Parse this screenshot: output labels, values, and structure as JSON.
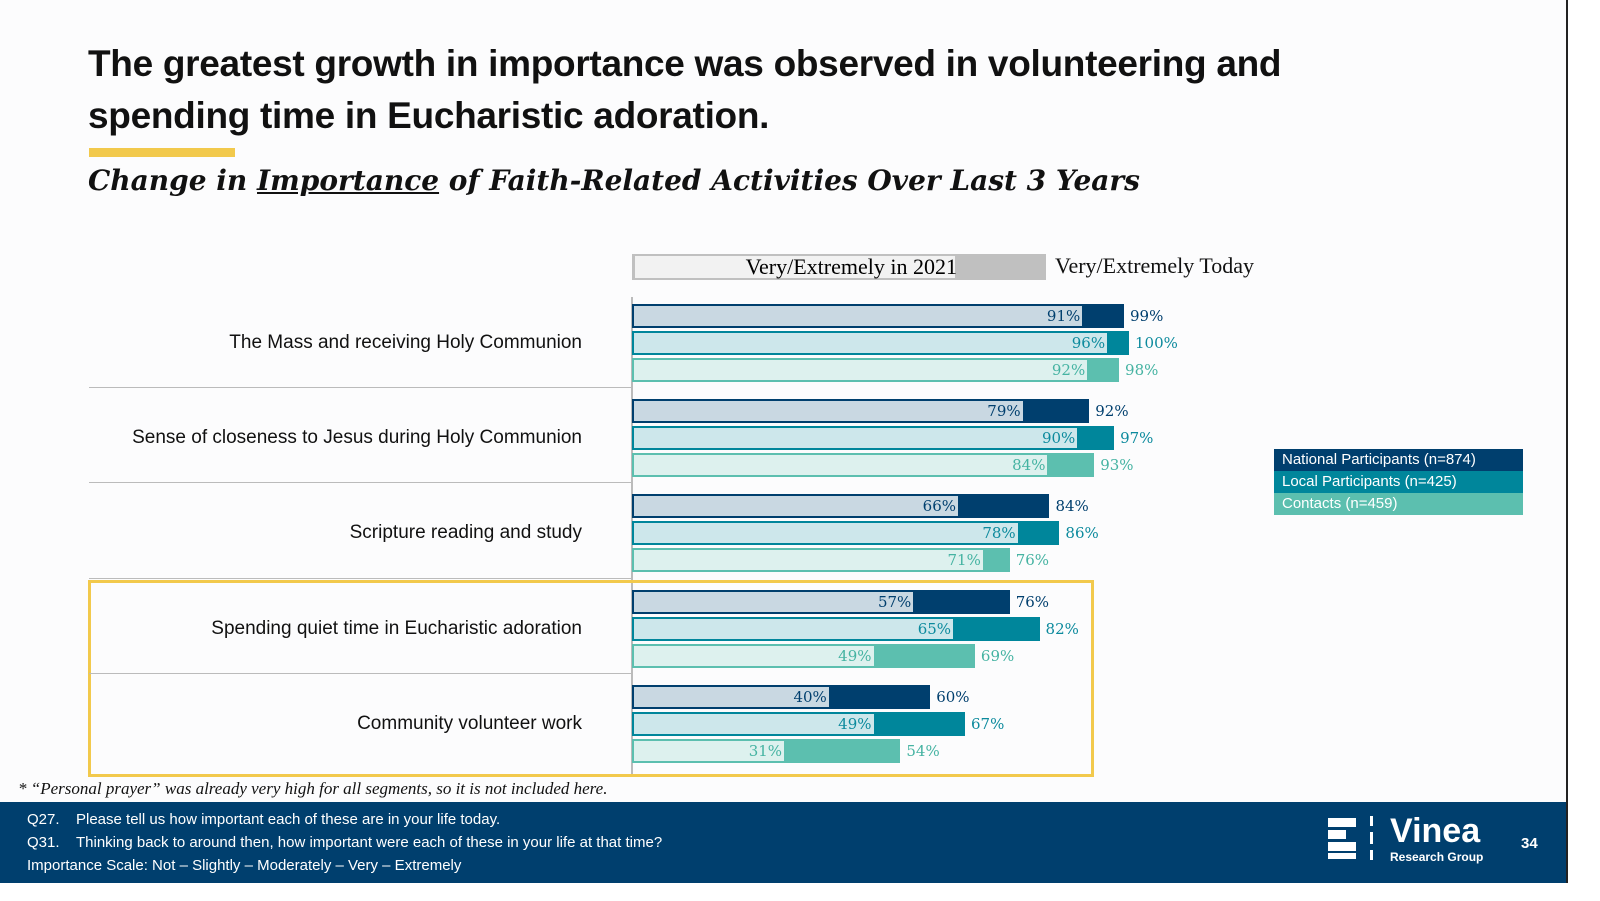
{
  "title": "The greatest growth in importance was observed in volunteering and spending time in Eucharistic adoration.",
  "subtitle": {
    "pre": "Change in ",
    "underlined": "Importance",
    "post": " of Faith-Related Activities Over Last 3 Years"
  },
  "chart_data": {
    "type": "bar",
    "orientation": "horizontal",
    "header_2021": "Very/Extremely in 2021",
    "header_today": "Very/Extremely  Today",
    "categories": [
      "The Mass and receiving Holy Communion",
      "Sense of closeness to Jesus during Holy Communion",
      "Scripture reading and study",
      "Spending quiet time in Eucharistic adoration",
      "Community volunteer work"
    ],
    "highlighted_categories": [
      3,
      4
    ],
    "series": [
      {
        "name": "National Participants (n=874)",
        "color": "#003F6E",
        "light": "#C9D8E2",
        "text": "#003F6E",
        "values_2021": [
          91,
          79,
          66,
          57,
          40
        ],
        "values_today": [
          99,
          92,
          84,
          76,
          60
        ]
      },
      {
        "name": "Local Participants (n=425)",
        "color": "#00869B",
        "light": "#CDE7EB",
        "text": "#0C8A9D",
        "values_2021": [
          96,
          90,
          78,
          65,
          49
        ],
        "values_today": [
          100,
          97,
          86,
          82,
          67
        ]
      },
      {
        "name": "Contacts (n=459)",
        "color": "#5CBFAF",
        "light": "#DDF1EE",
        "text": "#45B3A2",
        "values_2021": [
          92,
          84,
          71,
          49,
          31
        ],
        "values_today": [
          98,
          93,
          76,
          69,
          54
        ]
      }
    ],
    "xlim": [
      0,
      100
    ],
    "legend_position": "right"
  },
  "footnote": "* “Personal prayer” was already very high for all segments, so it is not included here.",
  "footer": {
    "lines": [
      {
        "q": "Q27.",
        "text": "Please tell us how important each of these are in your life today."
      },
      {
        "q": "Q31.",
        "text": "Thinking back to around then, how important were each of these in your life at that time?"
      }
    ],
    "scale": "Importance Scale:  Not – Slightly – Moderately – Very – Extremely",
    "logo_name": "Vinea",
    "logo_sub": "Research Group",
    "page_number": "34"
  }
}
